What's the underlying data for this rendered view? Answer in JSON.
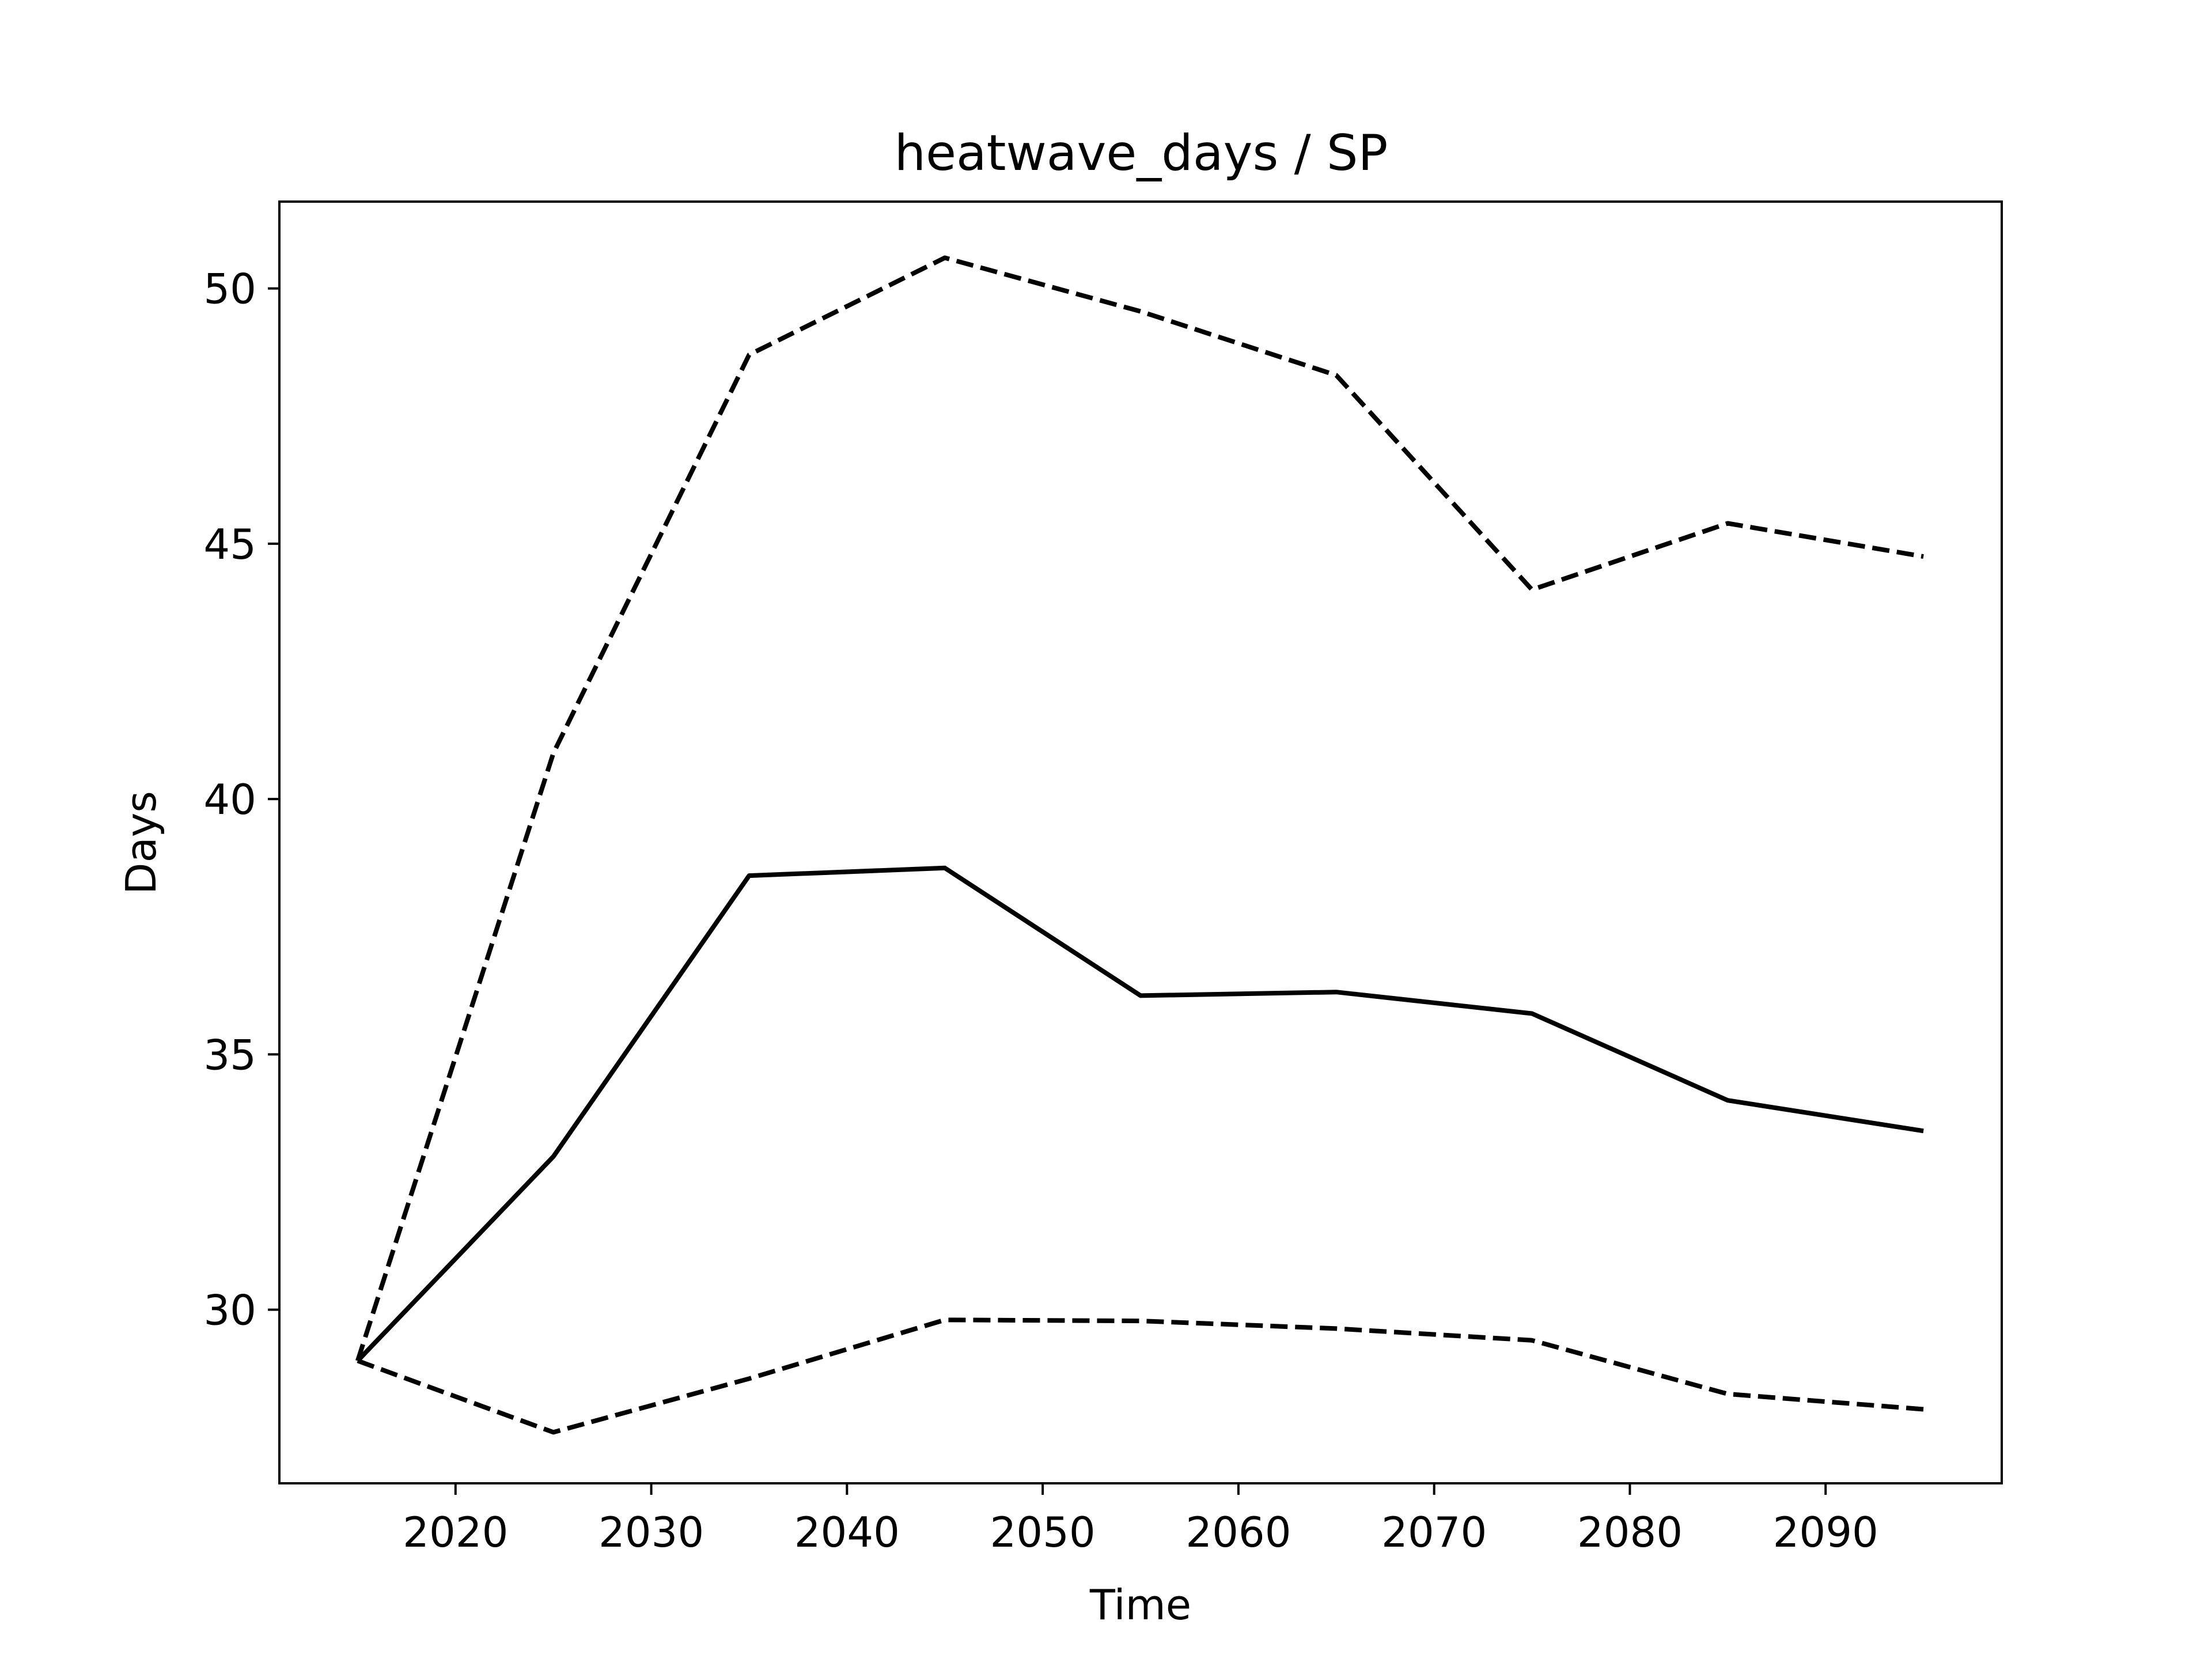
{
  "chart_data": {
    "type": "line",
    "title": "heatwave_days / SP",
    "xlabel": "Time",
    "ylabel": "Days",
    "x": [
      2015,
      2025,
      2035,
      2045,
      2055,
      2065,
      2075,
      2085,
      2095
    ],
    "xlim": [
      2011,
      2099
    ],
    "ylim": [
      26.6,
      51.7
    ],
    "xticks": [
      2020,
      2030,
      2040,
      2050,
      2060,
      2070,
      2080,
      2090
    ],
    "yticks": [
      30,
      35,
      40,
      45,
      50
    ],
    "grid": false,
    "color": "#000000",
    "series": [
      {
        "style": "solid",
        "values": [
          29.0,
          33.0,
          38.5,
          38.65,
          36.15,
          36.22,
          35.8,
          34.1,
          33.5
        ]
      },
      {
        "style": "dashed",
        "values": [
          29.0,
          40.9,
          48.7,
          50.6,
          49.55,
          48.3,
          44.1,
          45.4,
          44.75
        ]
      },
      {
        "style": "dashed",
        "values": [
          29.0,
          27.6,
          28.65,
          29.8,
          29.78,
          29.63,
          29.4,
          28.35,
          28.05
        ]
      }
    ]
  }
}
